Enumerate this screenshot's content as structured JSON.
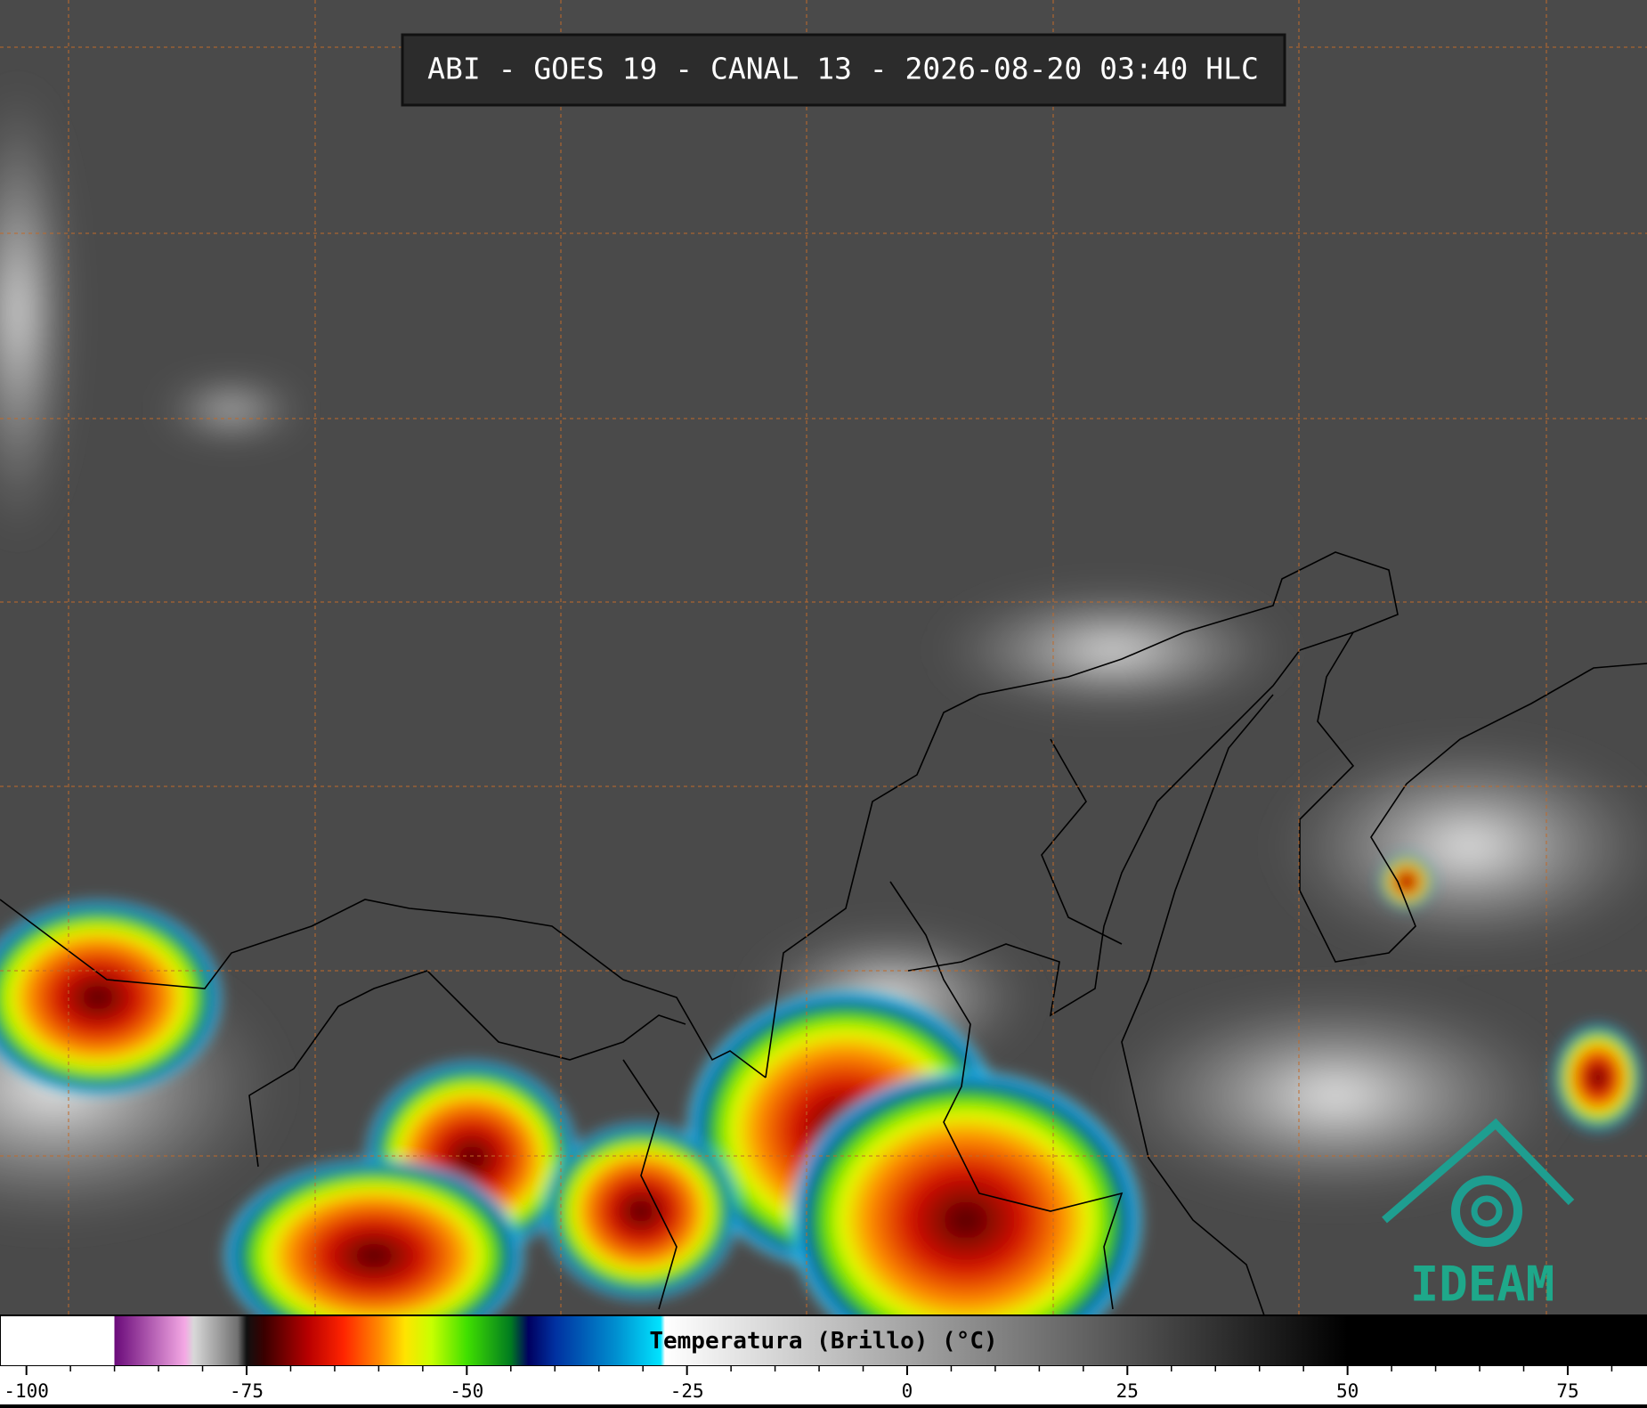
{
  "header": {
    "title": "ABI - GOES 19 - CANAL 13 - 2026-08-20 03:40 HLC"
  },
  "logo": {
    "text": "IDEAM"
  },
  "colorbar": {
    "label": "Temperatura (Brillo) (°C)",
    "xlim": [
      -103,
      84
    ],
    "xticks": [
      -100,
      -75,
      -50,
      -25,
      0,
      25,
      50,
      75
    ],
    "minor_xticks": [
      -95,
      -90,
      -85,
      -80,
      -70,
      -65,
      -60,
      -55,
      -45,
      -40,
      -35,
      -30,
      -20,
      -15,
      -10,
      -5,
      5,
      10,
      15,
      20,
      30,
      35,
      40,
      45,
      55,
      60,
      65,
      70,
      80
    ],
    "colormap": [
      {
        "value": -103,
        "color": "#ffffff"
      },
      {
        "value": -90,
        "color": "#ffffff"
      },
      {
        "value": -90,
        "color": "#6a0a7a"
      },
      {
        "value": -82,
        "color": "#f4a8e4"
      },
      {
        "value": -81,
        "color": "#d8d8d8"
      },
      {
        "value": -76,
        "color": "#707070"
      },
      {
        "value": -75,
        "color": "#101010"
      },
      {
        "value": -73,
        "color": "#3a0000"
      },
      {
        "value": -68,
        "color": "#b80000"
      },
      {
        "value": -64,
        "color": "#ff2400"
      },
      {
        "value": -60,
        "color": "#ff8800"
      },
      {
        "value": -57,
        "color": "#ffe400"
      },
      {
        "value": -54,
        "color": "#c8ff00"
      },
      {
        "value": -50,
        "color": "#40e000"
      },
      {
        "value": -45,
        "color": "#007a20"
      },
      {
        "value": -43,
        "color": "#000060"
      },
      {
        "value": -40,
        "color": "#0030a0"
      },
      {
        "value": -33,
        "color": "#0090d0"
      },
      {
        "value": -28,
        "color": "#00e4ff"
      },
      {
        "value": -27.5,
        "color": "#ffffff"
      },
      {
        "value": 50,
        "color": "#000000"
      },
      {
        "value": 84,
        "color": "#000000"
      }
    ]
  }
}
